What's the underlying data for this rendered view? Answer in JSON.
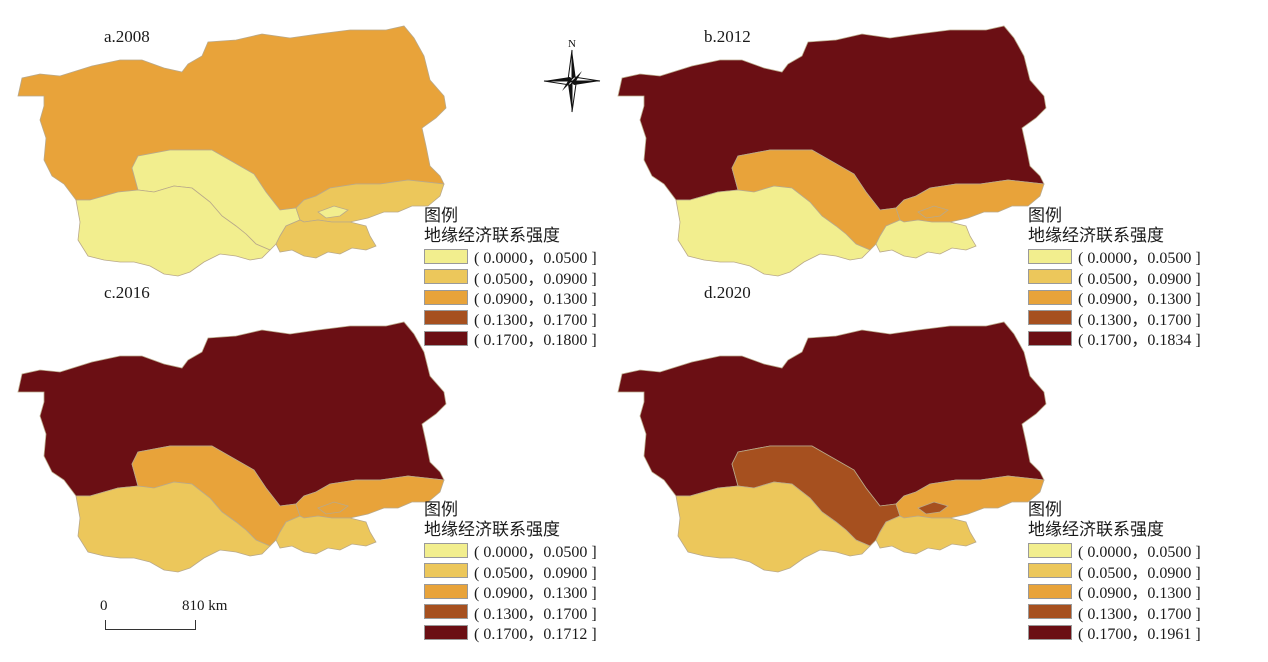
{
  "colors": {
    "class1": "#f2ee8e",
    "class2": "#ecc75b",
    "class3": "#e8a33a",
    "class4": "#a6501f",
    "class5": "#6b0f14",
    "border": "#b9a98a"
  },
  "legend_title": "图例",
  "legend_subtitle": "地缘经济联系强度",
  "north_label": "N",
  "scale": {
    "zero": "0",
    "end": "810 km"
  },
  "panels": [
    {
      "title": "a.2008",
      "regions": {
        "kaz": "class3",
        "uzb": "class1",
        "tkm": "class1",
        "kgz": "class2",
        "tjk": "class2"
      },
      "legend": [
        "( 0.0000，0.0500 ]",
        "( 0.0500，0.0900 ]",
        "( 0.0900，0.1300 ]",
        "( 0.1300，0.1700 ]",
        "( 0.1700，0.1800 ]"
      ]
    },
    {
      "title": "b.2012",
      "regions": {
        "kaz": "class5",
        "uzb": "class3",
        "tkm": "class1",
        "kgz": "class3",
        "tjk": "class1"
      },
      "legend": [
        "( 0.0000，0.0500 ]",
        "( 0.0500，0.0900 ]",
        "( 0.0900，0.1300 ]",
        "( 0.1300，0.1700 ]",
        "( 0.1700，0.1834 ]"
      ]
    },
    {
      "title": "c.2016",
      "regions": {
        "kaz": "class5",
        "uzb": "class3",
        "tkm": "class2",
        "kgz": "class3",
        "tjk": "class2"
      },
      "legend": [
        "( 0.0000，0.0500 ]",
        "( 0.0500，0.0900 ]",
        "( 0.0900，0.1300 ]",
        "( 0.1300，0.1700 ]",
        "( 0.1700，0.1712 ]"
      ]
    },
    {
      "title": "d.2020",
      "regions": {
        "kaz": "class5",
        "uzb": "class4",
        "tkm": "class2",
        "kgz": "class3",
        "tjk": "class2"
      },
      "legend": [
        "( 0.0000，0.0500 ]",
        "( 0.0500，0.0900 ]",
        "( 0.0900，0.1300 ]",
        "( 0.1300，0.1700 ]",
        "( 0.1700，0.1961 ]"
      ]
    }
  ]
}
